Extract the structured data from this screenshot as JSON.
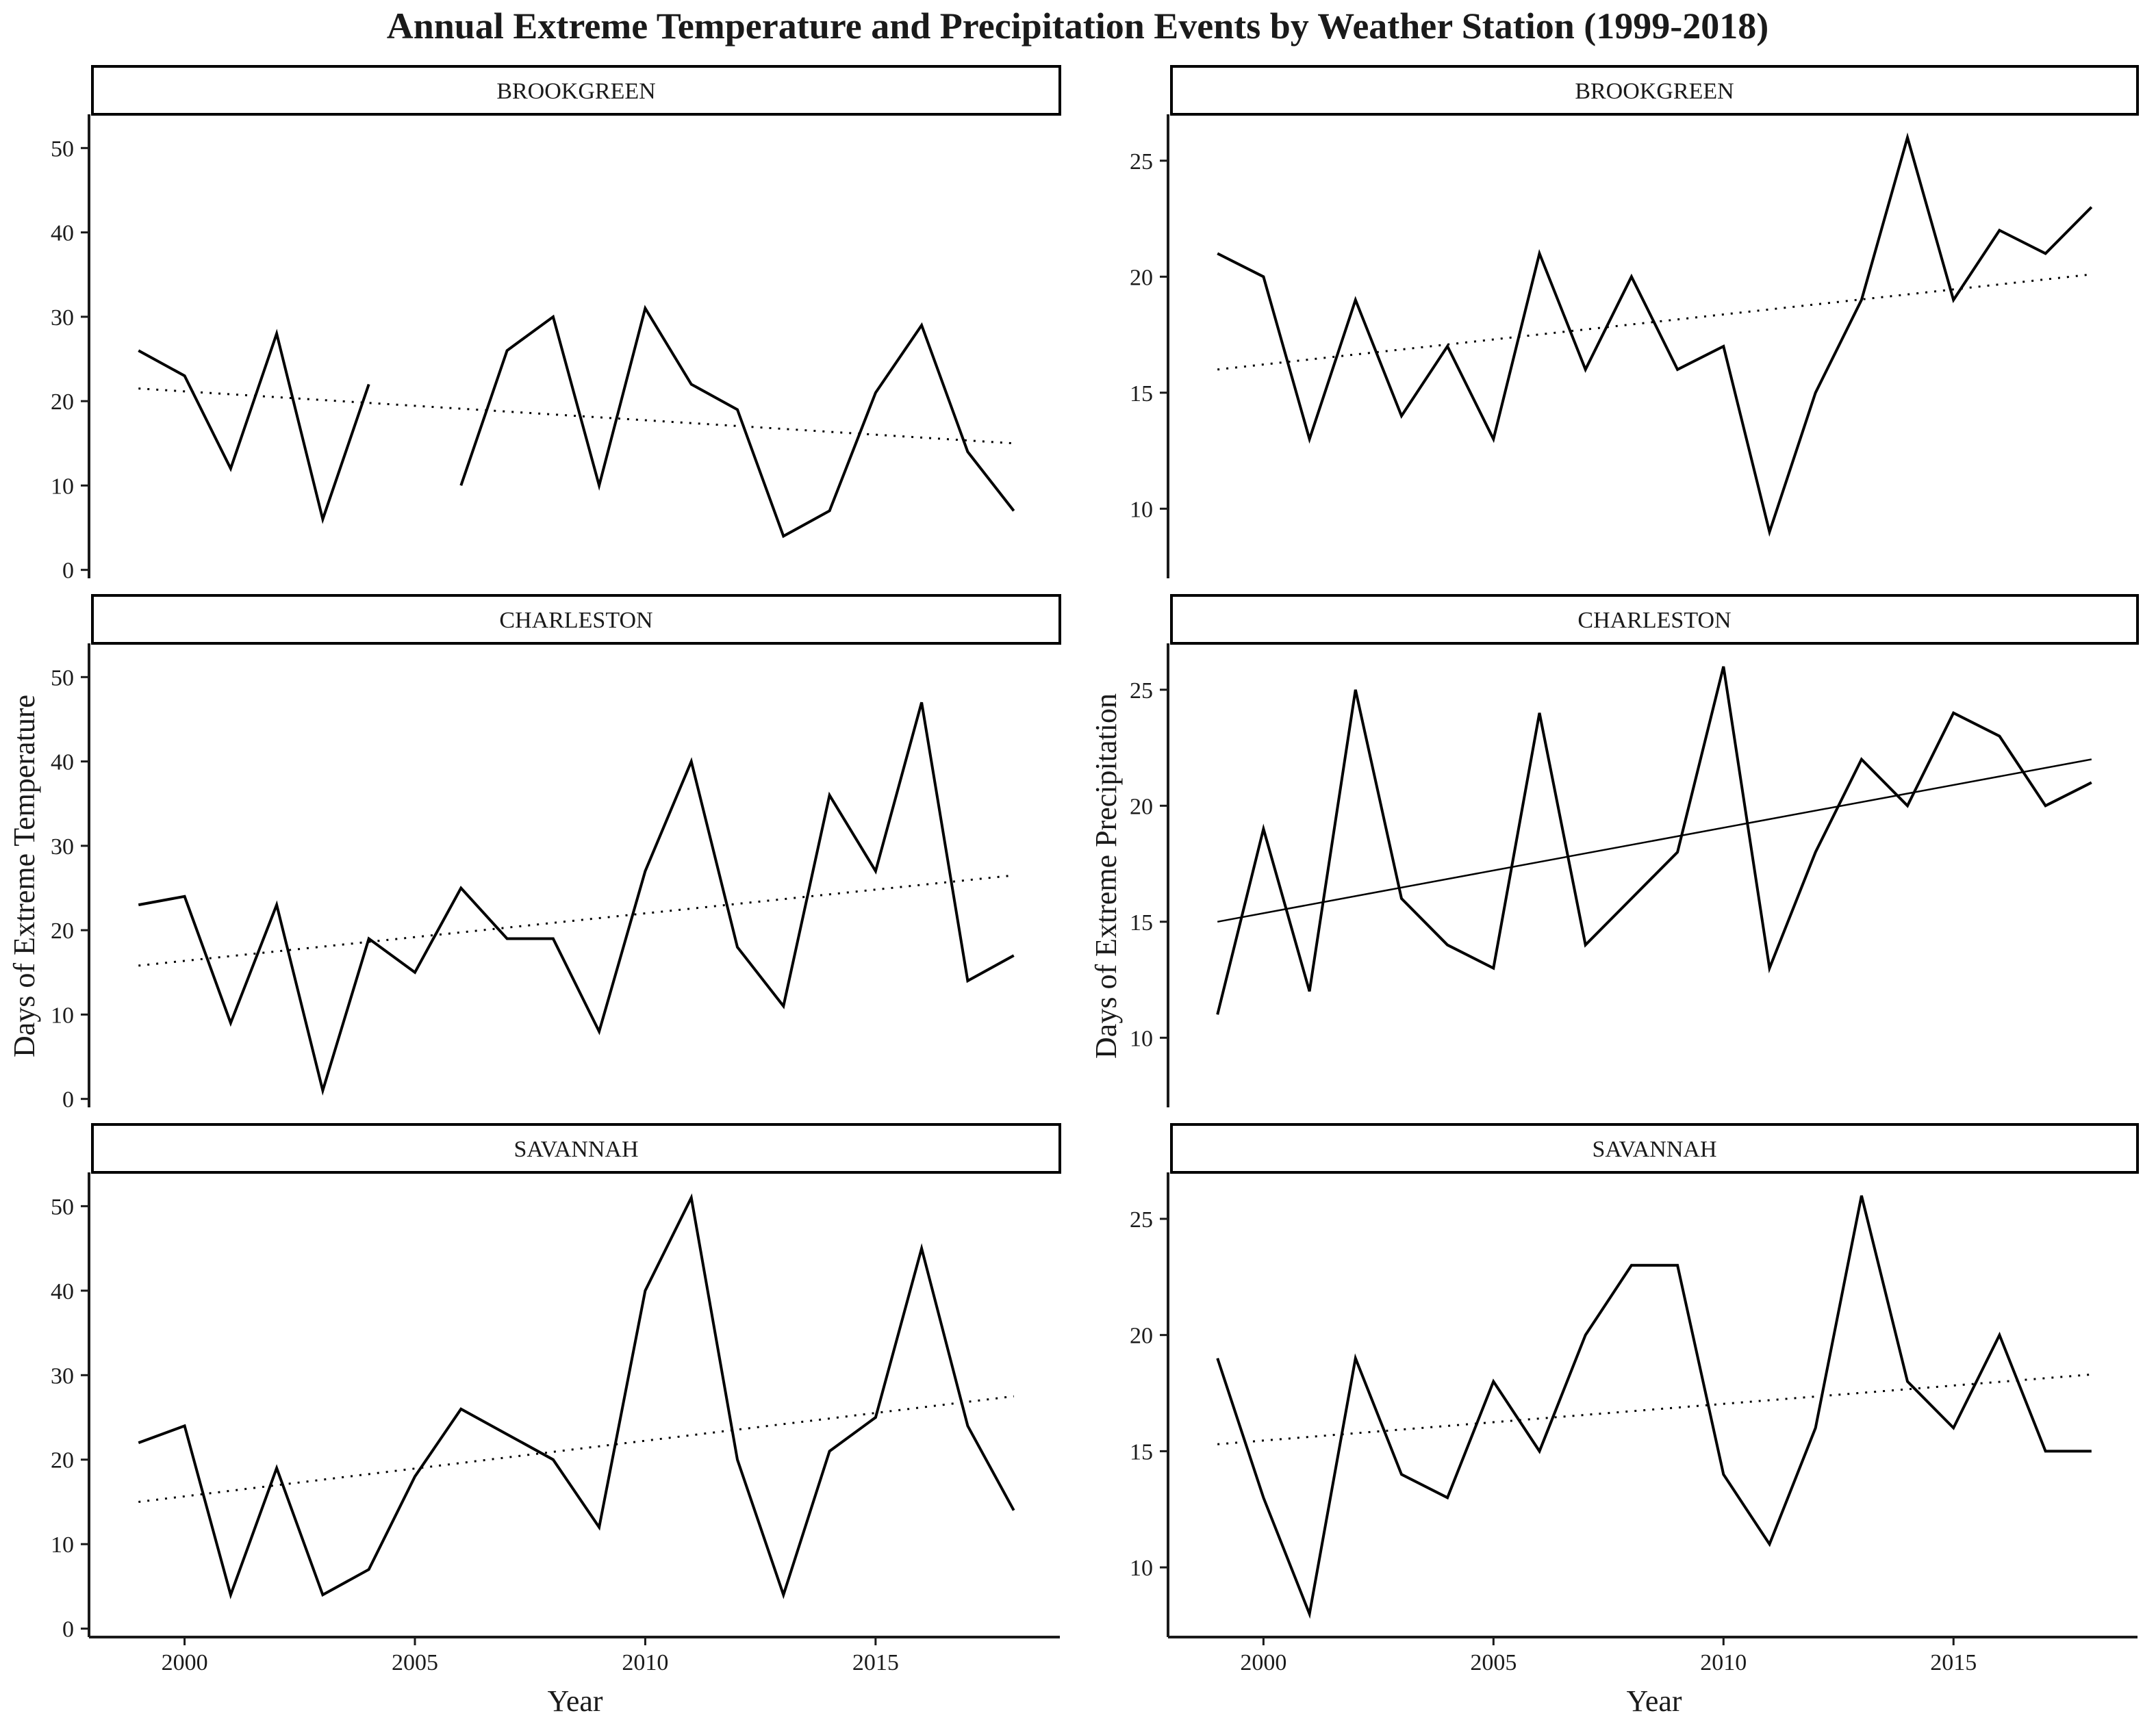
{
  "title": "Annual Extreme Temperature and Precipitation Events by Weather Station (1999-2018)",
  "chart_data": [
    {
      "type": "line",
      "strip_label": "BROOKGREEN",
      "series_name": "temperature",
      "xlim": [
        1998,
        2019
      ],
      "ylim": [
        -1,
        54
      ],
      "y_ticks": [
        0,
        10,
        20,
        30,
        40,
        50
      ],
      "x": [
        1999,
        2000,
        2001,
        2002,
        2003,
        2004,
        2005,
        2006,
        2007,
        2008,
        2009,
        2010,
        2011,
        2012,
        2013,
        2014,
        2015,
        2016,
        2017,
        2018
      ],
      "values": [
        26,
        23,
        12,
        28,
        6,
        22,
        null,
        10,
        26,
        30,
        10,
        31,
        22,
        19,
        4,
        7,
        21,
        29,
        14,
        7
      ],
      "trend": {
        "style": "dotted",
        "start": [
          1999,
          21.5
        ],
        "end": [
          2018,
          15
        ]
      }
    },
    {
      "type": "line",
      "strip_label": "BROOKGREEN",
      "series_name": "precipitation",
      "xlim": [
        1998,
        2019
      ],
      "ylim": [
        7,
        27
      ],
      "y_ticks": [
        10,
        15,
        20,
        25
      ],
      "x": [
        1999,
        2000,
        2001,
        2002,
        2003,
        2004,
        2005,
        2006,
        2007,
        2008,
        2009,
        2010,
        2011,
        2012,
        2013,
        2014,
        2015,
        2016,
        2017,
        2018
      ],
      "values": [
        21,
        20,
        13,
        19,
        14,
        17,
        13,
        21,
        16,
        20,
        16,
        17,
        9,
        15,
        19,
        26,
        19,
        22,
        21,
        23
      ],
      "trend": {
        "style": "dotted",
        "start": [
          1999,
          16
        ],
        "end": [
          2018,
          20.1
        ]
      }
    },
    {
      "type": "line",
      "strip_label": "CHARLESTON",
      "series_name": "temperature",
      "xlim": [
        1998,
        2019
      ],
      "ylim": [
        -1,
        54
      ],
      "y_ticks": [
        0,
        10,
        20,
        30,
        40,
        50
      ],
      "x": [
        1999,
        2000,
        2001,
        2002,
        2003,
        2004,
        2005,
        2006,
        2007,
        2008,
        2009,
        2010,
        2011,
        2012,
        2013,
        2014,
        2015,
        2016,
        2017,
        2018
      ],
      "values": [
        23,
        24,
        9,
        23,
        1,
        19,
        15,
        25,
        19,
        19,
        8,
        27,
        40,
        18,
        11,
        36,
        27,
        47,
        14,
        17
      ],
      "trend": {
        "style": "dotted",
        "start": [
          1999,
          15.8
        ],
        "end": [
          2018,
          26.5
        ]
      }
    },
    {
      "type": "line",
      "strip_label": "CHARLESTON",
      "series_name": "precipitation",
      "xlim": [
        1998,
        2019
      ],
      "ylim": [
        7,
        27
      ],
      "y_ticks": [
        10,
        15,
        20,
        25
      ],
      "x": [
        1999,
        2000,
        2001,
        2002,
        2003,
        2004,
        2005,
        2006,
        2007,
        2008,
        2009,
        2010,
        2011,
        2012,
        2013,
        2014,
        2015,
        2016,
        2017,
        2018
      ],
      "values": [
        11,
        19,
        12,
        25,
        16,
        14,
        13,
        24,
        14,
        16,
        18,
        26,
        13,
        18,
        22,
        20,
        24,
        23,
        20,
        21
      ],
      "trend": {
        "style": "solid",
        "start": [
          1999,
          15
        ],
        "end": [
          2018,
          22
        ]
      }
    },
    {
      "type": "line",
      "strip_label": "SAVANNAH",
      "series_name": "temperature",
      "xlim": [
        1998,
        2019
      ],
      "ylim": [
        -1,
        54
      ],
      "y_ticks": [
        0,
        10,
        20,
        30,
        40,
        50
      ],
      "x_ticks": [
        2000,
        2005,
        2010,
        2015
      ],
      "x": [
        1999,
        2000,
        2001,
        2002,
        2003,
        2004,
        2005,
        2006,
        2007,
        2008,
        2009,
        2010,
        2011,
        2012,
        2013,
        2014,
        2015,
        2016,
        2017,
        2018
      ],
      "values": [
        22,
        24,
        4,
        19,
        4,
        7,
        18,
        26,
        23,
        20,
        12,
        40,
        51,
        20,
        4,
        21,
        25,
        45,
        24,
        14
      ],
      "trend": {
        "style": "dotted",
        "start": [
          1999,
          15
        ],
        "end": [
          2018,
          27.5
        ]
      }
    },
    {
      "type": "line",
      "strip_label": "SAVANNAH",
      "series_name": "precipitation",
      "xlim": [
        1998,
        2019
      ],
      "ylim": [
        7,
        27
      ],
      "y_ticks": [
        10,
        15,
        20,
        25
      ],
      "x_ticks": [
        2000,
        2005,
        2010,
        2015
      ],
      "x": [
        1999,
        2000,
        2001,
        2002,
        2003,
        2004,
        2005,
        2006,
        2007,
        2008,
        2009,
        2010,
        2011,
        2012,
        2013,
        2014,
        2015,
        2016,
        2017,
        2018
      ],
      "values": [
        19,
        13,
        8,
        19,
        14,
        13,
        18,
        15,
        20,
        23,
        23,
        14,
        11,
        16,
        26,
        18,
        16,
        20,
        15,
        15
      ],
      "trend": {
        "style": "dotted",
        "start": [
          1999,
          15.3
        ],
        "end": [
          2018,
          18.3
        ]
      }
    }
  ],
  "axes": {
    "left_ylabel": "Days of Extreme Temperature",
    "right_ylabel": "Days of Extreme Precipitation",
    "xlabel": "Year",
    "legend": "none",
    "grid": false
  },
  "colors": {
    "line": "#000000",
    "trend": "#000000",
    "strip_fill": "#ffffff",
    "strip_border": "#000000",
    "axis": "#1a1a1a",
    "background": "#ffffff"
  }
}
